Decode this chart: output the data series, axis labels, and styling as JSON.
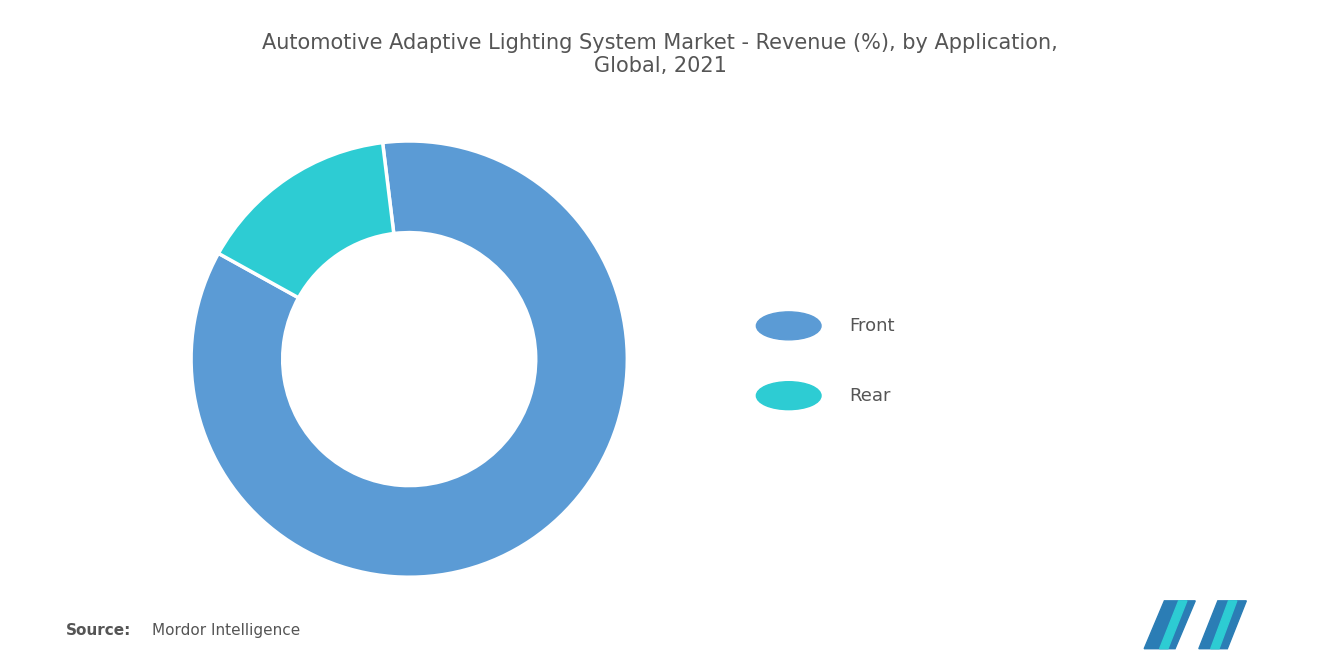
{
  "title": "Automotive Adaptive Lighting System Market - Revenue (%), by Application,\nGlobal, 2021",
  "title_fontsize": 15,
  "title_color": "#555555",
  "labels": [
    "Front",
    "Rear"
  ],
  "values": [
    85,
    15
  ],
  "colors": [
    "#5B9BD5",
    "#2DCCD3"
  ],
  "legend_labels": [
    "Front",
    "Rear"
  ],
  "source_bold": "Source:",
  "source_text": "Mordor Intelligence",
  "source_fontsize": 11,
  "background_color": "#FFFFFF",
  "wedge_edge_color": "#FFFFFF",
  "donut_width": 0.42,
  "start_angle": 97
}
